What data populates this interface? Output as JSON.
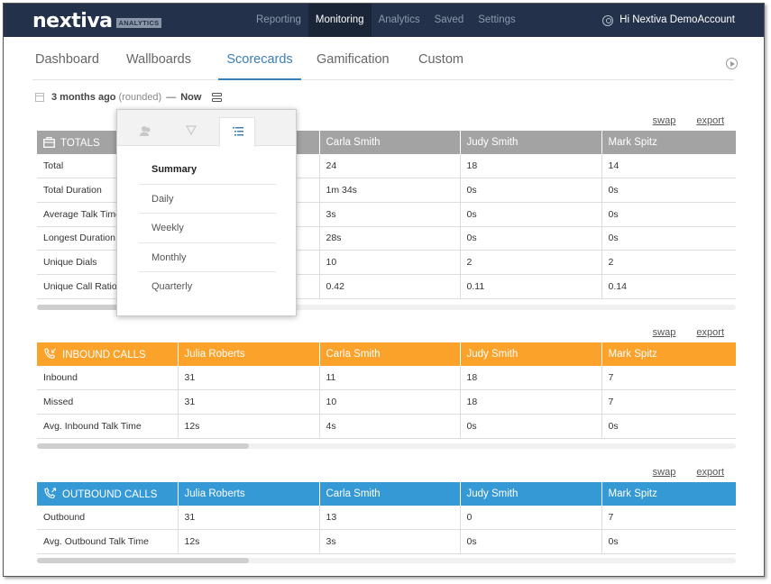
{
  "brand": {
    "name": "nextiva",
    "badge": "ANALYTICS"
  },
  "nav": {
    "items": [
      "Reporting",
      "Monitoring",
      "Analytics",
      "Saved",
      "Settings"
    ],
    "active": "Monitoring",
    "user_greeting": "Hi Nextiva DemoAccount",
    "icon": "gear-icon"
  },
  "tabs": {
    "items": [
      "Dashboard",
      "Wallboards",
      "Scorecards",
      "Gamification",
      "Custom"
    ],
    "active": "Scorecards",
    "icon": "play-circle-icon"
  },
  "range": {
    "start": "3 months ago",
    "qualifier": "(rounded)",
    "dash": "—",
    "end": "Now"
  },
  "period_menu": {
    "tab_icons": [
      "users-icon",
      "filter-icon",
      "list-icon"
    ],
    "items": [
      "Summary",
      "Daily",
      "Weekly",
      "Monthly",
      "Quarterly"
    ],
    "selected": "Summary"
  },
  "actions": {
    "swap": "swap",
    "export": "export"
  },
  "agents": [
    "Julia Roberts",
    "Carla Smith",
    "Judy Smith",
    "Mark Spitz"
  ],
  "totals": {
    "title": "TOTALS",
    "color": "#a3a3a3",
    "rows": [
      {
        "label": "Total",
        "values": [
          "",
          "24",
          "18",
          "14"
        ]
      },
      {
        "label": "Total Duration",
        "values": [
          "",
          "1m 34s",
          "0s",
          "0s"
        ]
      },
      {
        "label": "Average Talk Time",
        "values": [
          "",
          "3s",
          "0s",
          "0s"
        ]
      },
      {
        "label": "Longest Duration",
        "values": [
          "",
          "28s",
          "0s",
          "0s"
        ]
      },
      {
        "label": "Unique Dials",
        "values": [
          "",
          "10",
          "2",
          "2"
        ]
      },
      {
        "label": "Unique Call Ratio",
        "values": [
          "",
          "0.42",
          "0.11",
          "0.14"
        ]
      }
    ]
  },
  "inbound": {
    "title": "INBOUND CALLS",
    "color": "#faa22a",
    "rows": [
      {
        "label": "Inbound",
        "values": [
          "31",
          "11",
          "18",
          "7"
        ]
      },
      {
        "label": "Missed",
        "values": [
          "31",
          "10",
          "18",
          "7"
        ]
      },
      {
        "label": "Avg. Inbound Talk Time",
        "values": [
          "12s",
          "4s",
          "0s",
          "0s"
        ]
      }
    ]
  },
  "outbound": {
    "title": "OUTBOUND CALLS",
    "color": "#3599d6",
    "rows": [
      {
        "label": "Outbound",
        "values": [
          "31",
          "13",
          "0",
          "7"
        ]
      },
      {
        "label": "Avg. Outbound Talk Time",
        "values": [
          "12s",
          "3s",
          "0s",
          "0s"
        ]
      }
    ]
  }
}
